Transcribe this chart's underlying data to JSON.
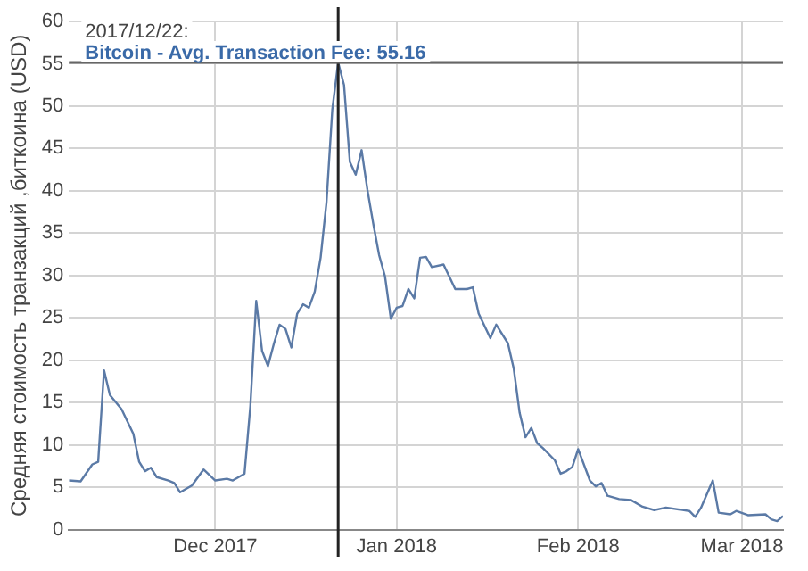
{
  "chart_data": {
    "type": "line",
    "ylabel": "Средняя стоимость транзакций ,биткоина (USD)",
    "x": [
      "2017-11-06",
      "2017-11-08",
      "2017-11-10",
      "2017-11-11",
      "2017-11-12",
      "2017-11-13",
      "2017-11-15",
      "2017-11-17",
      "2017-11-18",
      "2017-11-19",
      "2017-11-20",
      "2017-11-21",
      "2017-11-23",
      "2017-11-24",
      "2017-11-25",
      "2017-11-27",
      "2017-11-29",
      "2017-12-01",
      "2017-12-03",
      "2017-12-04",
      "2017-12-06",
      "2017-12-07",
      "2017-12-08",
      "2017-12-09",
      "2017-12-10",
      "2017-12-11",
      "2017-12-12",
      "2017-12-13",
      "2017-12-14",
      "2017-12-15",
      "2017-12-16",
      "2017-12-17",
      "2017-12-18",
      "2017-12-19",
      "2017-12-20",
      "2017-12-21",
      "2017-12-22",
      "2017-12-23",
      "2017-12-24",
      "2017-12-25",
      "2017-12-26",
      "2017-12-27",
      "2017-12-28",
      "2017-12-29",
      "2017-12-30",
      "2017-12-31",
      "2018-01-01",
      "2018-01-02",
      "2018-01-03",
      "2018-01-04",
      "2018-01-05",
      "2018-01-06",
      "2018-01-07",
      "2018-01-09",
      "2018-01-11",
      "2018-01-13",
      "2018-01-14",
      "2018-01-15",
      "2018-01-17",
      "2018-01-18",
      "2018-01-20",
      "2018-01-21",
      "2018-01-22",
      "2018-01-23",
      "2018-01-24",
      "2018-01-25",
      "2018-01-26",
      "2018-01-28",
      "2018-01-29",
      "2018-01-30",
      "2018-01-31",
      "2018-02-01",
      "2018-02-03",
      "2018-02-04",
      "2018-02-05",
      "2018-02-06",
      "2018-02-08",
      "2018-02-10",
      "2018-02-12",
      "2018-02-14",
      "2018-02-16",
      "2018-02-20",
      "2018-02-21",
      "2018-02-22",
      "2018-02-24",
      "2018-02-25",
      "2018-02-27",
      "2018-02-28",
      "2018-03-02",
      "2018-03-05",
      "2018-03-06",
      "2018-03-07",
      "2018-03-08"
    ],
    "series": [
      {
        "color": "#5b7aa6",
        "values": [
          5.8,
          5.7,
          7.7,
          8.0,
          18.8,
          15.9,
          14.2,
          11.3,
          8.0,
          6.9,
          7.3,
          6.2,
          5.8,
          5.5,
          4.4,
          5.2,
          7.1,
          5.8,
          6.0,
          5.8,
          6.6,
          14.6,
          27.0,
          21.1,
          19.3,
          21.9,
          24.2,
          23.7,
          21.5,
          25.5,
          26.6,
          26.2,
          28.1,
          32.1,
          38.6,
          49.6,
          55.16,
          52.5,
          43.4,
          41.9,
          44.8,
          40.1,
          36.1,
          32.4,
          29.9,
          24.9,
          26.2,
          26.4,
          28.4,
          27.3,
          32.1,
          32.2,
          31.0,
          31.3,
          28.4,
          28.4,
          28.6,
          25.5,
          22.6,
          24.2,
          22.0,
          19.0,
          13.8,
          10.9,
          12.0,
          10.2,
          9.6,
          8.2,
          6.6,
          6.9,
          7.4,
          9.5,
          5.8,
          5.1,
          5.5,
          4.0,
          3.6,
          3.5,
          2.7,
          2.3,
          2.6,
          2.2,
          1.5,
          2.6,
          5.8,
          2.0,
          1.8,
          2.2,
          1.7,
          1.8,
          1.2,
          1.0,
          1.6
        ]
      }
    ],
    "xlim": [
      "2017-11-06",
      "2018-03-08"
    ],
    "xticks": [
      {
        "value": "2017-12-01",
        "label": "Dec 2017"
      },
      {
        "value": "2018-01-01",
        "label": "Jan 2018"
      },
      {
        "value": "2018-02-01",
        "label": "Feb 2018"
      },
      {
        "value": "2018-03-01",
        "label": "Mar 2018"
      }
    ],
    "ylim": [
      0,
      60
    ],
    "yticks": [
      0,
      5,
      10,
      15,
      20,
      25,
      30,
      35,
      40,
      45,
      50,
      55,
      60
    ],
    "grid": true,
    "marker": "none",
    "line_style": "solid",
    "legend": false,
    "ref_lines": [
      {
        "axis": "x",
        "value": "2017-12-22",
        "color": "#222222"
      },
      {
        "axis": "y",
        "value": 55.16,
        "color": "#666666"
      }
    ],
    "annotations": [
      "2017/12/22:",
      "Bitcoin - Avg. Transaction Fee: 55.16"
    ]
  }
}
